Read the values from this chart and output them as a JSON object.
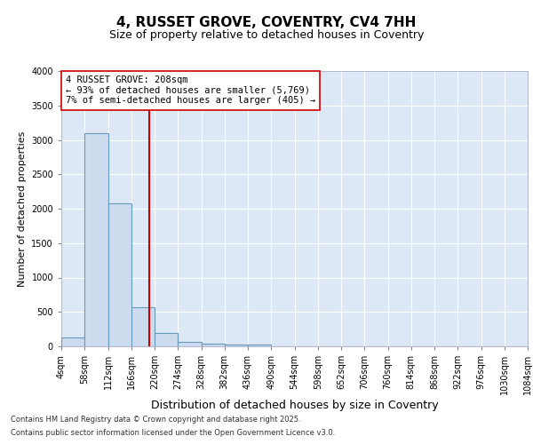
{
  "title1": "4, RUSSET GROVE, COVENTRY, CV4 7HH",
  "title2": "Size of property relative to detached houses in Coventry",
  "xlabel": "Distribution of detached houses by size in Coventry",
  "ylabel": "Number of detached properties",
  "bin_edges": [
    4,
    58,
    112,
    166,
    220,
    274,
    328,
    382,
    436,
    490,
    544,
    598,
    652,
    706,
    760,
    814,
    868,
    922,
    976,
    1030,
    1084
  ],
  "bar_heights": [
    130,
    3100,
    2080,
    570,
    200,
    70,
    45,
    30,
    20,
    5,
    0,
    0,
    0,
    0,
    0,
    0,
    0,
    0,
    0,
    0
  ],
  "bar_color": "#ccdcee",
  "bar_edge_color": "#6699bb",
  "red_line_x": 208,
  "annotation_text": "4 RUSSET GROVE: 208sqm\n← 93% of detached houses are smaller (5,769)\n7% of semi-detached houses are larger (405) →",
  "annotation_box_facecolor": "#ffffff",
  "annotation_box_edgecolor": "#cc0000",
  "ylim": [
    0,
    4000
  ],
  "yticks": [
    0,
    500,
    1000,
    1500,
    2000,
    2500,
    3000,
    3500,
    4000
  ],
  "figure_bg": "#ffffff",
  "plot_bg": "#dce8f5",
  "grid_color": "#ffffff",
  "footer1": "Contains HM Land Registry data © Crown copyright and database right 2025.",
  "footer2": "Contains public sector information licensed under the Open Government Licence v3.0.",
  "title_fontsize": 11,
  "subtitle_fontsize": 9,
  "tick_fontsize": 7,
  "ylabel_fontsize": 8,
  "xlabel_fontsize": 9,
  "red_line_color": "#cc0000",
  "annotation_fontsize": 7.5
}
